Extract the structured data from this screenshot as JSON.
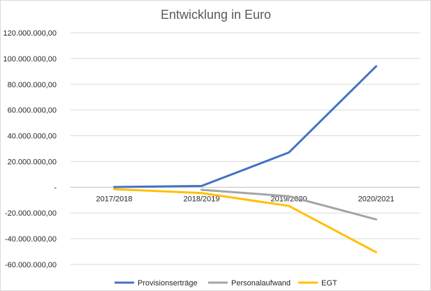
{
  "chart_data": {
    "type": "line",
    "title": "Entwicklung in Euro",
    "xlabel": "",
    "ylabel": "",
    "categories": [
      "2017/2018",
      "2018/2019",
      "2019/2020",
      "2020/2021"
    ],
    "ylim": [
      -60000000,
      120000000
    ],
    "yticks": [
      120000000,
      100000000,
      80000000,
      60000000,
      40000000,
      20000000,
      0,
      -20000000,
      -40000000,
      -60000000
    ],
    "ytick_labels": [
      "120.000.000,00",
      "100.000.000,00",
      "80.000.000,00",
      "60.000.000,00",
      "40.000.000,00",
      "20.000.000,00",
      "-",
      "-20.000.000,00",
      "-40.000.000,00",
      "-60.000.000,00"
    ],
    "grid": true,
    "legend_position": "bottom",
    "series": [
      {
        "name": "Provisionserträge",
        "color": "#4472C4",
        "values": [
          200000,
          1000000,
          27000000,
          94000000
        ]
      },
      {
        "name": "Personalaufwand",
        "color": "#A5A5A5",
        "values": [
          null,
          -2000000,
          -7000000,
          -25000000
        ]
      },
      {
        "name": "EGT",
        "color": "#FFC000",
        "values": [
          -1500000,
          -4500000,
          -14500000,
          -50500000
        ]
      }
    ]
  }
}
